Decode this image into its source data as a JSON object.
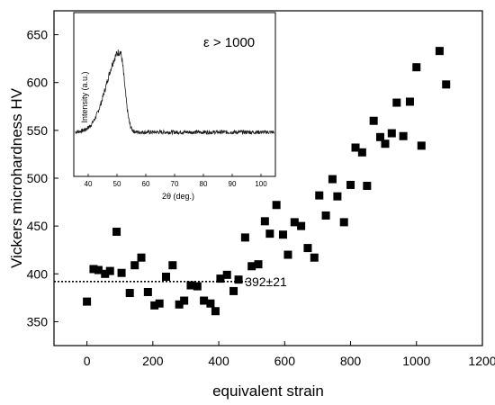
{
  "chart_data": [
    {
      "type": "scatter",
      "xlabel": "equivalent strain",
      "ylabel": "Vickers microhardness HV",
      "xlim": [
        -100,
        1200
      ],
      "ylim": [
        325,
        675
      ],
      "xticks": [
        0,
        200,
        400,
        600,
        800,
        1000,
        1200
      ],
      "yticks": [
        350,
        400,
        450,
        500,
        550,
        600,
        650
      ],
      "marker": "square",
      "marker_color": "#000000",
      "x": [
        0,
        20,
        35,
        55,
        70,
        90,
        105,
        130,
        145,
        165,
        185,
        205,
        220,
        240,
        260,
        280,
        295,
        315,
        335,
        355,
        375,
        390,
        405,
        425,
        445,
        460,
        480,
        500,
        520,
        540,
        555,
        575,
        595,
        610,
        630,
        650,
        670,
        690,
        705,
        725,
        745,
        760,
        780,
        800,
        815,
        835,
        850,
        870,
        890,
        905,
        925,
        940,
        960,
        980,
        1000,
        1015,
        1070,
        1090
      ],
      "y": [
        371,
        405,
        404,
        400,
        403,
        444,
        401,
        380,
        409,
        417,
        381,
        367,
        369,
        397,
        409,
        368,
        372,
        388,
        387,
        372,
        369,
        361,
        395,
        399,
        382,
        394,
        438,
        408,
        410,
        455,
        442,
        472,
        441,
        420,
        454,
        450,
        427,
        417,
        482,
        461,
        499,
        481,
        454,
        493,
        532,
        527,
        492,
        560,
        543,
        536,
        547,
        579,
        544,
        580,
        616,
        534,
        633,
        598
      ],
      "reference_line": {
        "y": 392,
        "x_range": [
          -100,
          485
        ],
        "style": "dotted",
        "label": "392±21"
      }
    },
    {
      "type": "line",
      "inset": true,
      "annotation": "ε > 1000",
      "xlabel": "2θ (deg.)",
      "ylabel": "Intensity (a.u.)",
      "xlim": [
        35,
        105
      ],
      "ylim": [
        0,
        1
      ],
      "xticks": [
        40,
        50,
        60,
        70,
        80,
        90,
        100
      ],
      "baseline": 0.27,
      "noise": 0.012,
      "peak": {
        "center": 51,
        "height": 0.49,
        "left_width": 6.5,
        "right_width": 2.3
      },
      "line_color": "#1a1a1a"
    }
  ]
}
